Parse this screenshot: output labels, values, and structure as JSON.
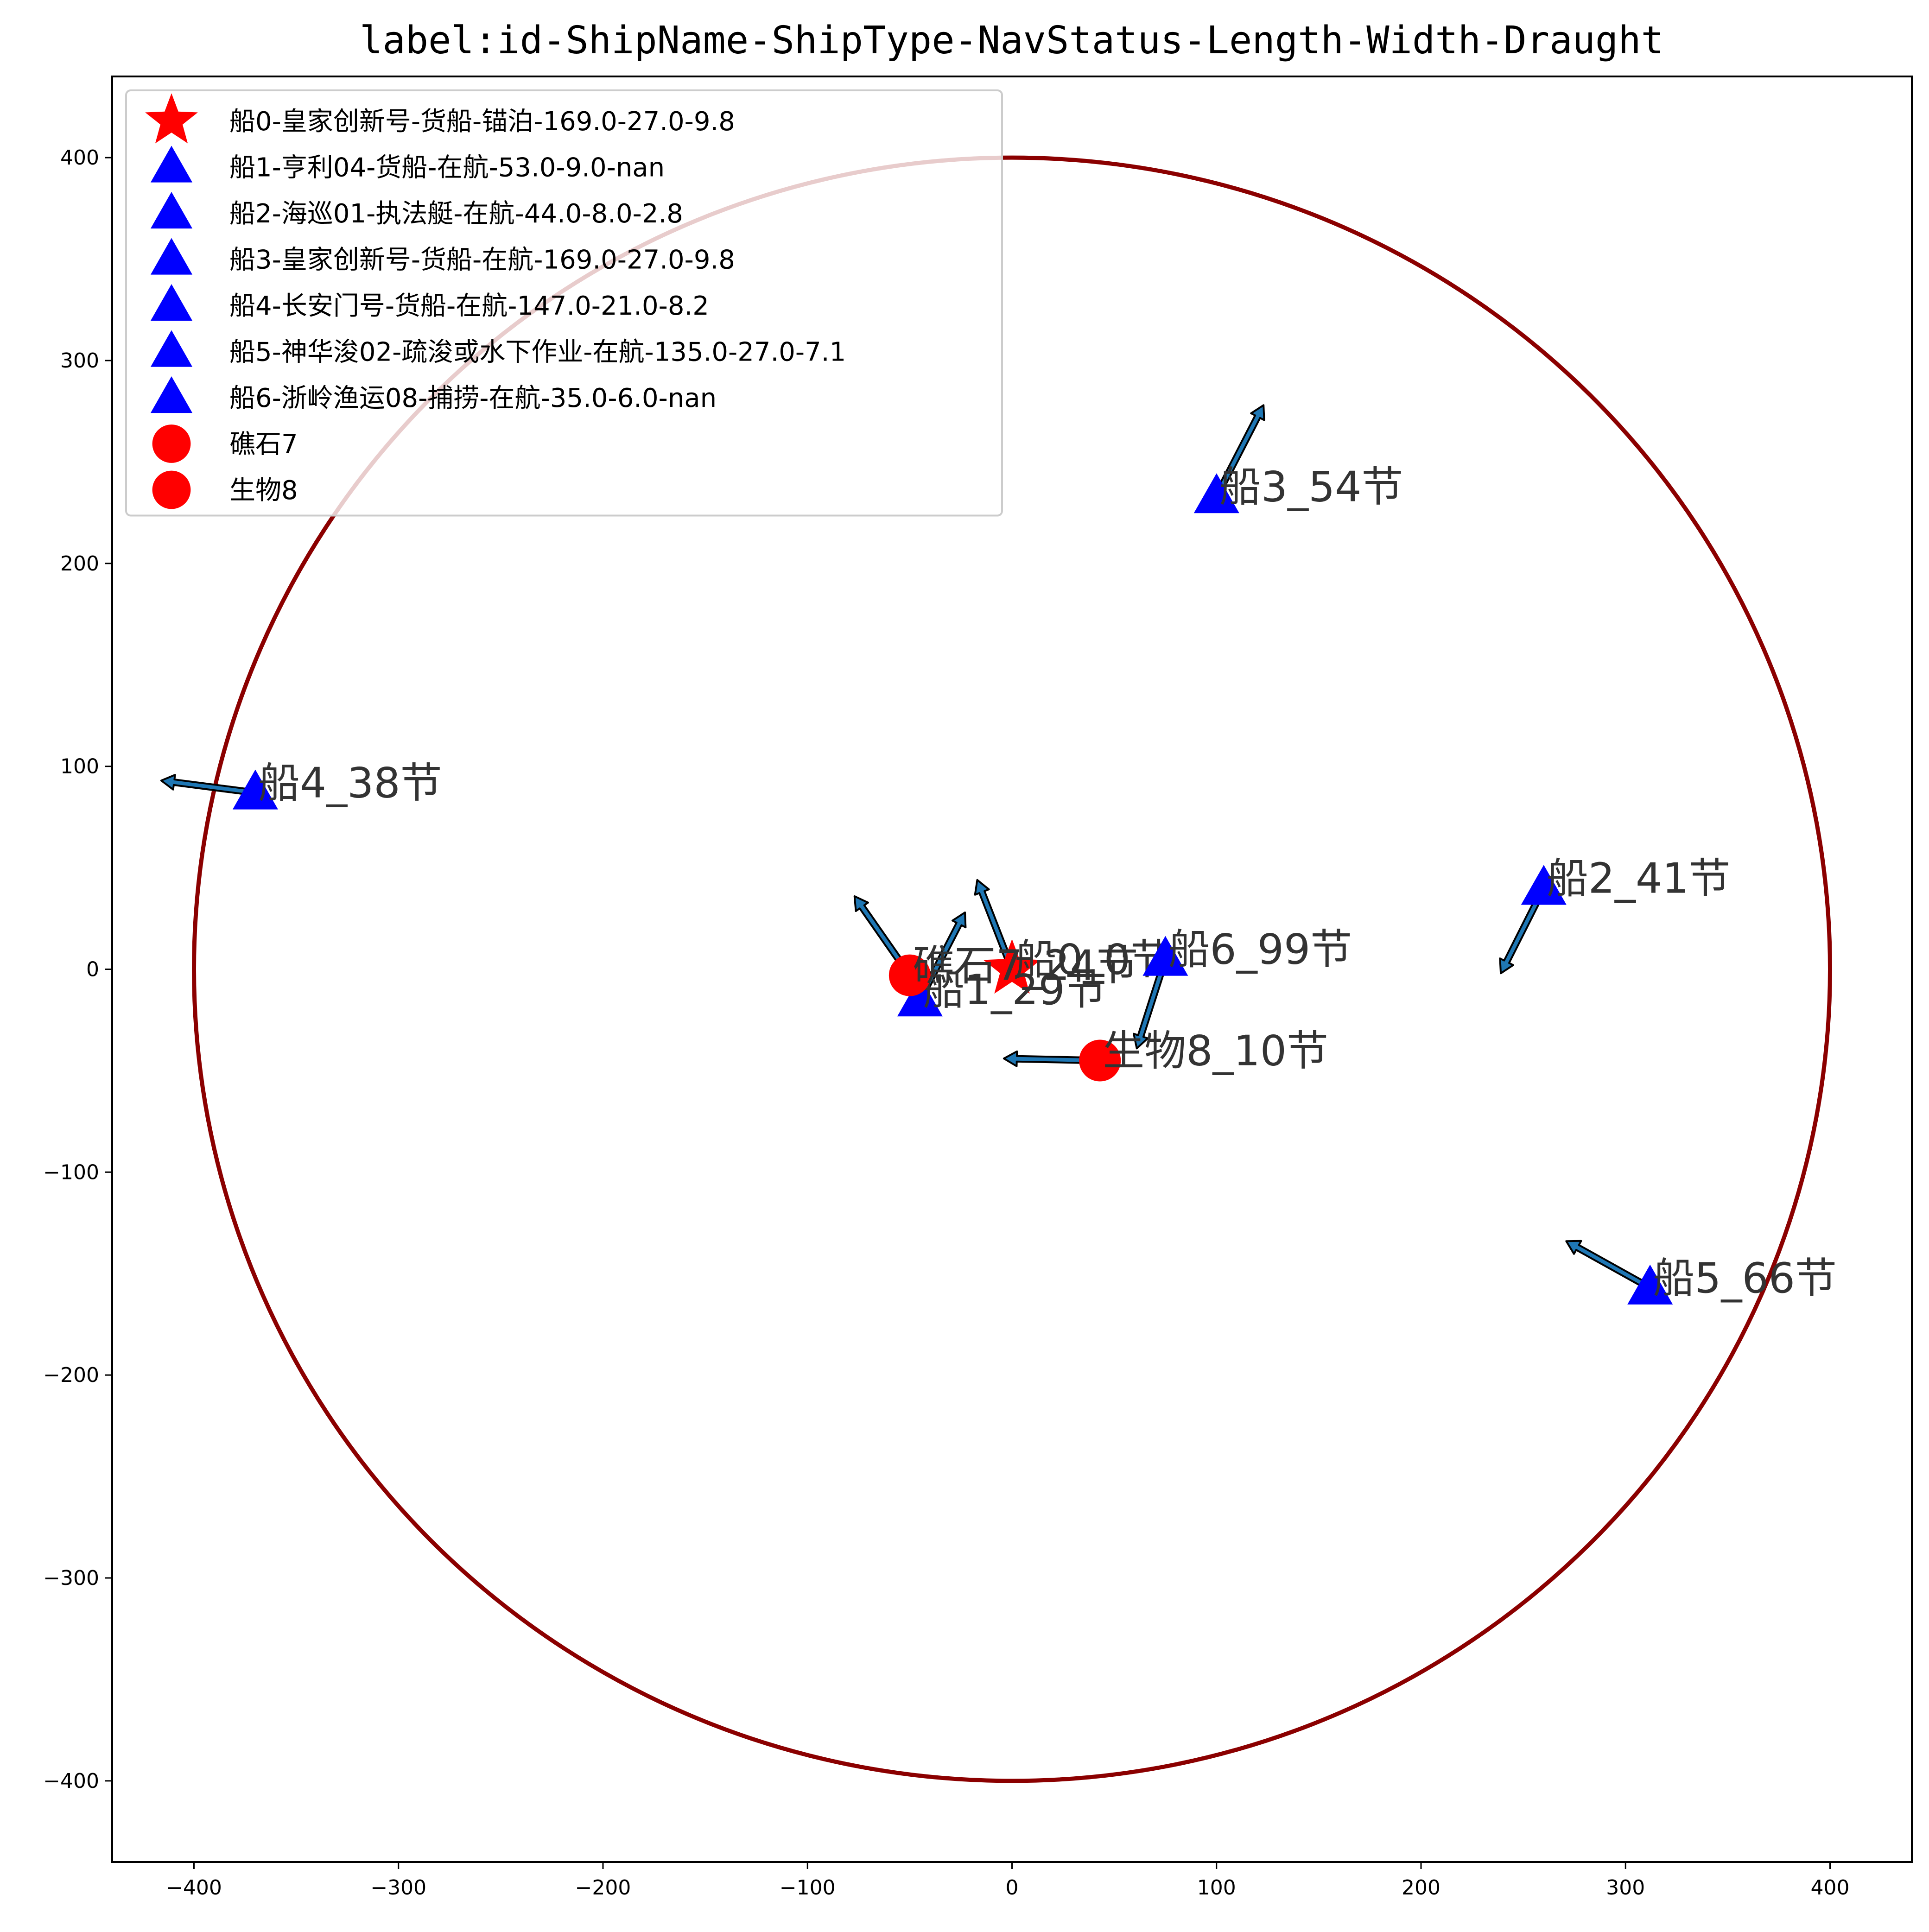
{
  "chart_data": {
    "type": "scatter",
    "title": "label:id-ShipName-ShipType-NavStatus-Length-Width-Draught",
    "xlabel": "",
    "ylabel": "",
    "xlim": [
      -440,
      440
    ],
    "ylim": [
      -440,
      440
    ],
    "xticks": [
      -400,
      -300,
      -200,
      -100,
      0,
      100,
      200,
      300,
      400
    ],
    "yticks": [
      -400,
      -300,
      -200,
      -100,
      0,
      100,
      200,
      300,
      400
    ],
    "xtick_labels": [
      "−400",
      "−300",
      "−200",
      "−100",
      "0",
      "100",
      "200",
      "300",
      "400"
    ],
    "ytick_labels": [
      "−400",
      "−300",
      "−200",
      "−100",
      "0",
      "100",
      "200",
      "300",
      "400"
    ],
    "grid": false,
    "legend_position": "top-left",
    "range_circle": {
      "center": [
        0,
        0
      ],
      "radius": 400,
      "color": "#8b0000"
    },
    "colors": {
      "ship_marker": "#0000ff",
      "own_ship_marker": "#ff0000",
      "obstacle_marker": "#ff0000",
      "arrow_fill": "#1f77b4",
      "arrow_edge": "#000000"
    },
    "points": [
      {
        "id": "ship0",
        "marker": "star",
        "color": "#ff0000",
        "x": 0,
        "y": 0,
        "legend": "船0-皇家创新号-货船-锚泊-169.0-27.0-9.8",
        "label": "船0_0节",
        "arrow": null
      },
      {
        "id": "ship1",
        "marker": "triangle",
        "color": "#0000ff",
        "x": -45,
        "y": -15,
        "legend": "船1-亨利04-货船-在航-53.0-9.0-nan",
        "label": "船1_29节",
        "arrow": [
          -23,
          28
        ]
      },
      {
        "id": "ship2",
        "marker": "triangle",
        "color": "#0000ff",
        "x": 260,
        "y": 40,
        "legend": "船2-海巡01-执法艇-在航-44.0-8.0-2.8",
        "label": "船2_41节",
        "arrow": [
          239,
          -2
        ]
      },
      {
        "id": "ship3",
        "marker": "triangle",
        "color": "#0000ff",
        "x": 100,
        "y": 233,
        "legend": "船3-皇家创新号-货船-在航-169.0-27.0-9.8",
        "label": "船3_54节",
        "arrow": [
          123,
          278
        ]
      },
      {
        "id": "ship4",
        "marker": "triangle",
        "color": "#0000ff",
        "x": -370,
        "y": 87,
        "legend": "船4-长安门号-货船-在航-147.0-21.0-8.2",
        "label": "船4_38节",
        "arrow": [
          -416,
          93
        ]
      },
      {
        "id": "ship5",
        "marker": "triangle",
        "color": "#0000ff",
        "x": 312,
        "y": -157,
        "legend": "船5-神华浚02-疏浚或水下作业-在航-135.0-27.0-7.1",
        "label": "船5_66节",
        "arrow": [
          271,
          -134
        ]
      },
      {
        "id": "ship6",
        "marker": "triangle",
        "color": "#0000ff",
        "x": 75,
        "y": 5,
        "legend": "船6-浙岭渔运08-捕捞-在航-35.0-6.0-nan",
        "label": "船6_99节",
        "arrow": [
          61,
          -39
        ]
      },
      {
        "id": "reef7",
        "marker": "circle",
        "color": "#ff0000",
        "x": -50,
        "y": -3,
        "legend": "礁石7",
        "label": "礁石7_24节",
        "arrow": [
          -77,
          36
        ]
      },
      {
        "id": "bio8",
        "marker": "circle",
        "color": "#ff0000",
        "x": 43,
        "y": -45,
        "legend": "生物8",
        "label": "生物8_10节",
        "arrow": [
          -4,
          -44
        ]
      },
      {
        "id": "ship0_heading",
        "marker": "none",
        "x": 0,
        "y": 0,
        "arrow": [
          -17,
          44
        ]
      }
    ]
  }
}
